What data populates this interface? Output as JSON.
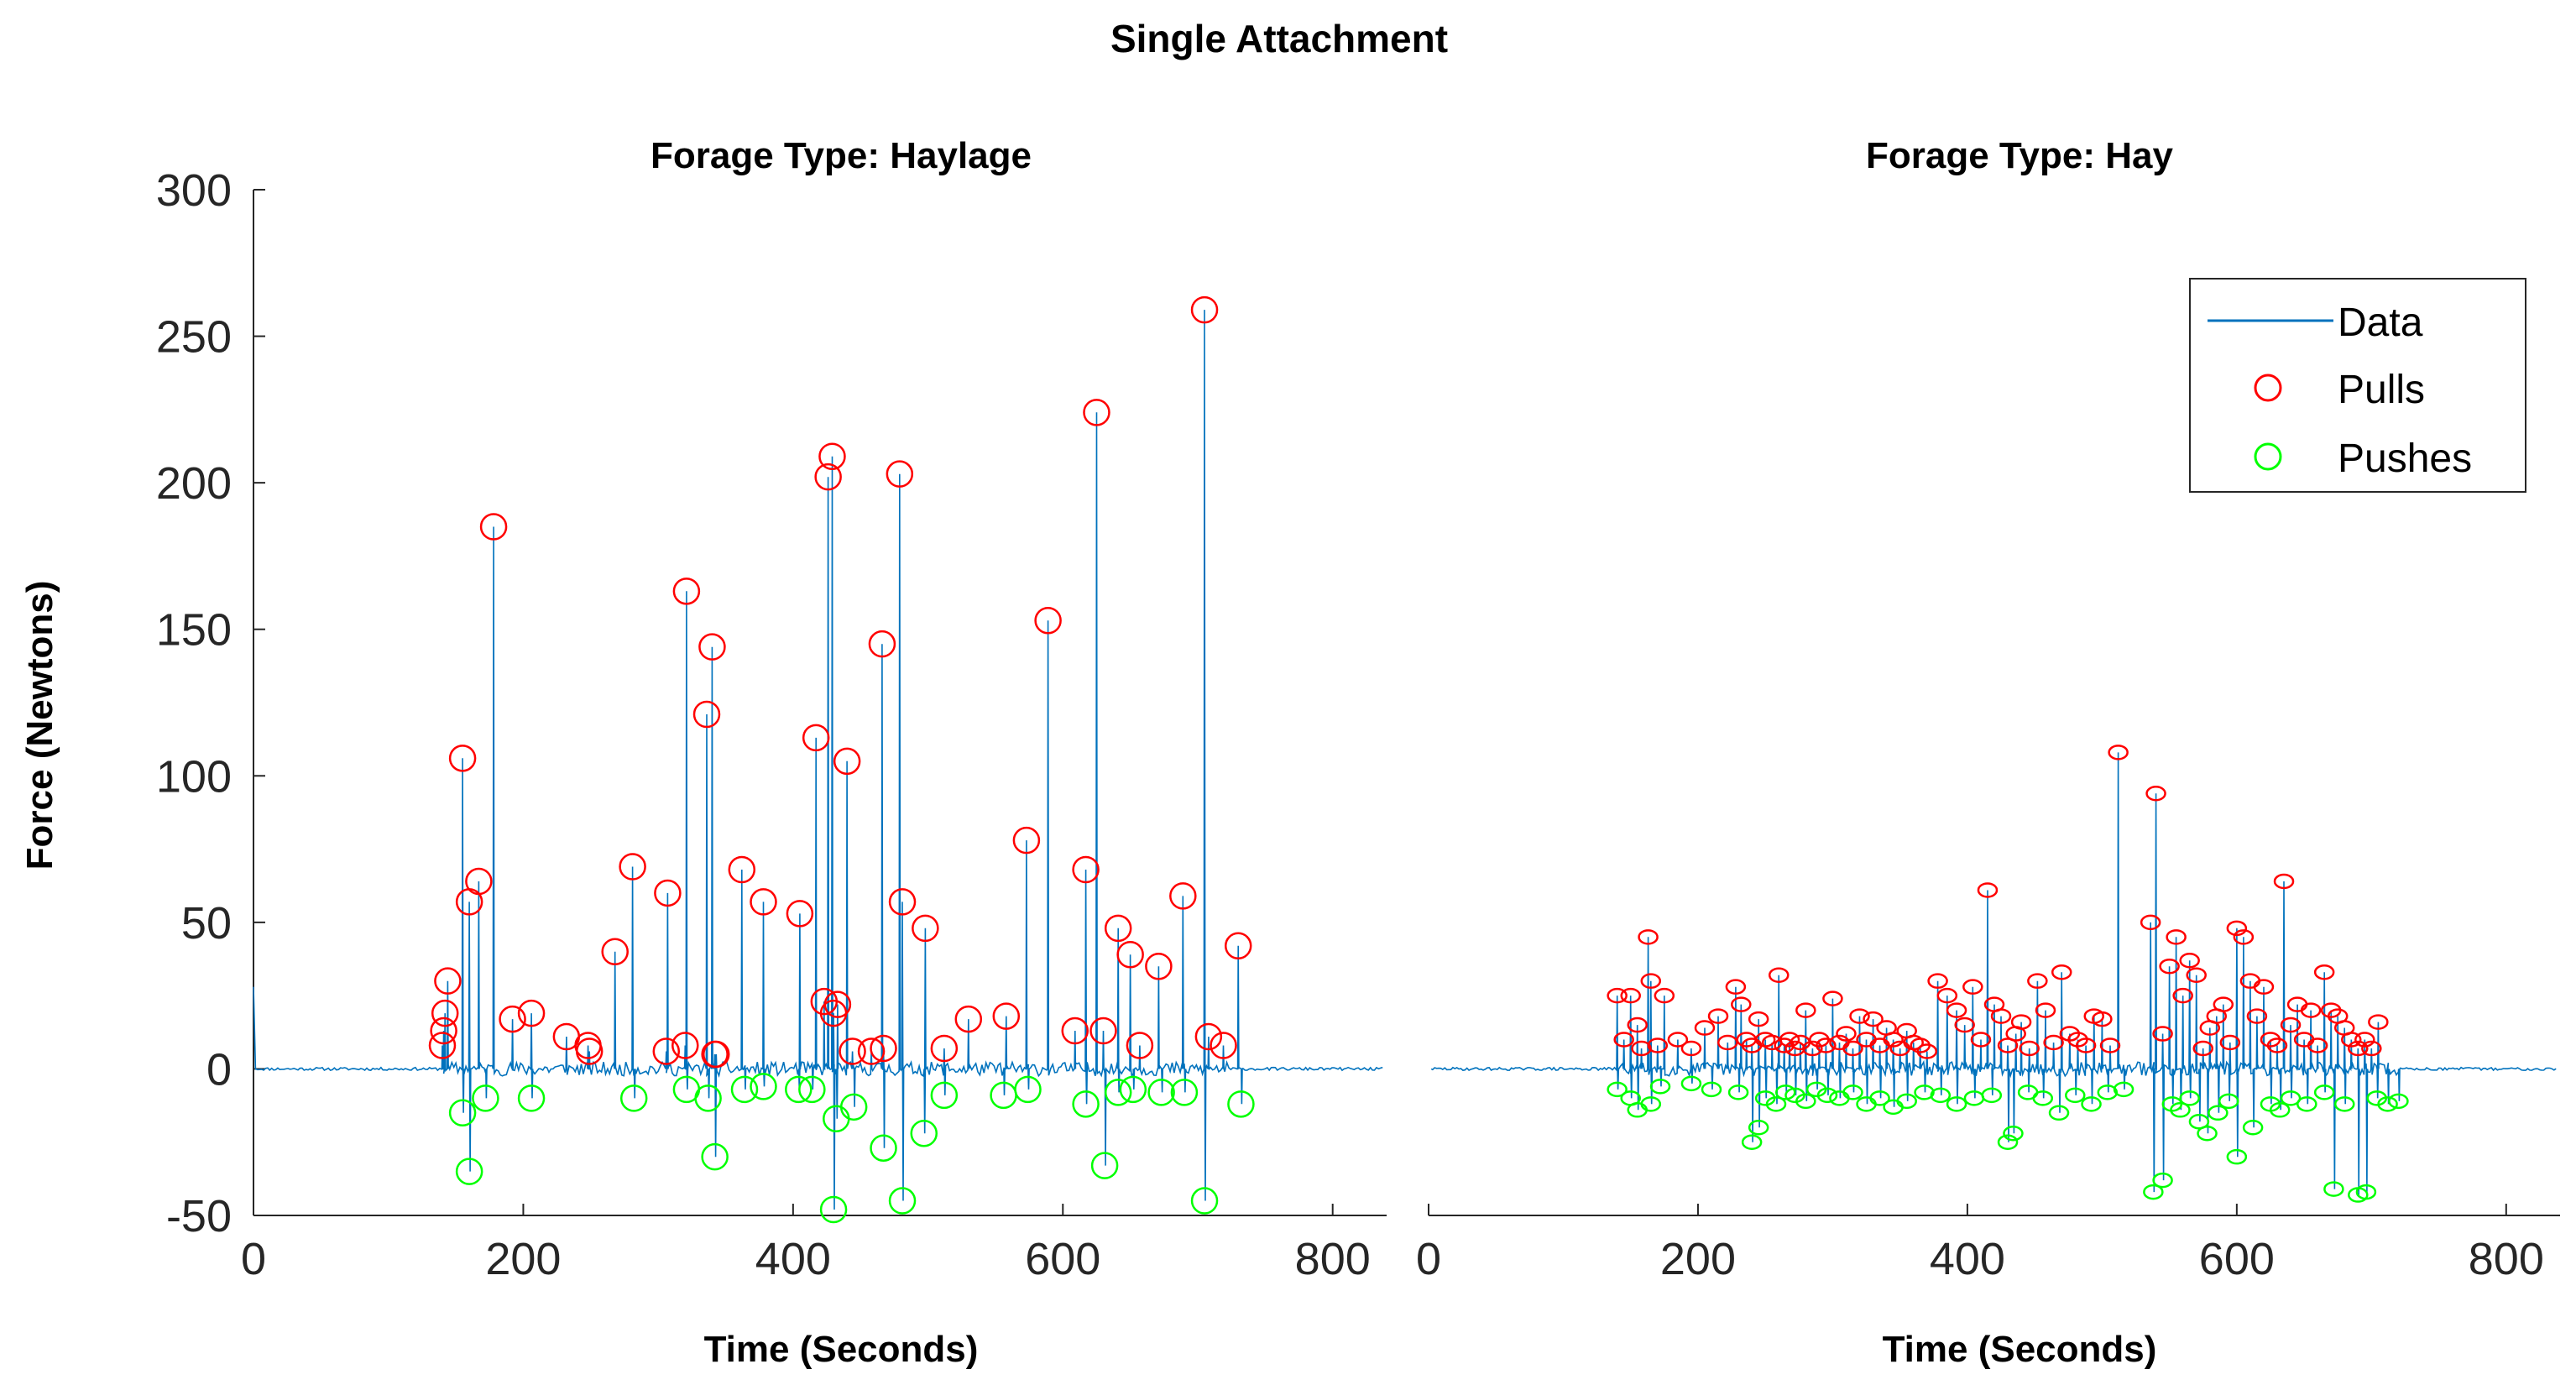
{
  "figure": {
    "title": "Single Attachment",
    "colors": {
      "data": "#0072BD",
      "pulls": "#FF0000",
      "pushes": "#00FF00",
      "axis": "#262626"
    }
  },
  "chart_data": [
    {
      "type": "line",
      "title": "Forage Type: Haylage",
      "xlabel": "Time (Seconds)",
      "ylabel": "Force (Newtons)",
      "xlim": [
        0,
        840
      ],
      "ylim": [
        -50,
        300
      ],
      "xticks": [
        0,
        200,
        400,
        600,
        800
      ],
      "xtick_labels": [
        "0",
        "200",
        "400",
        "600",
        "800"
      ],
      "yticks": [
        -50,
        0,
        50,
        100,
        150,
        200,
        250,
        300
      ],
      "ytick_labels": [
        "-50",
        "0",
        "50",
        "100",
        "150",
        "200",
        "250",
        "300"
      ],
      "series": [
        {
          "name": "Data",
          "style": "line",
          "baseline": 0,
          "start": {
            "x": 0,
            "y": 28
          },
          "active_range": [
            140,
            725
          ]
        },
        {
          "name": "Pulls",
          "style": "marker-circle",
          "x": [
            140,
            141,
            142,
            144,
            155,
            160,
            167,
            178,
            192,
            206,
            232,
            248,
            249,
            268,
            281,
            306,
            307,
            320,
            321,
            336,
            340,
            342,
            343,
            362,
            378,
            405,
            417,
            423,
            426,
            429,
            430,
            433,
            440,
            444,
            458,
            466,
            467,
            479,
            481,
            498,
            512,
            530,
            558,
            573,
            589,
            609,
            617,
            625,
            630,
            641,
            650,
            657,
            671,
            689,
            705,
            708,
            719,
            730
          ],
          "y": [
            8,
            13,
            19,
            30,
            106,
            57,
            64,
            185,
            17,
            19,
            11,
            8,
            6,
            40,
            69,
            6,
            60,
            8,
            163,
            121,
            144,
            5,
            5,
            68,
            57,
            53,
            113,
            23,
            202,
            209,
            19,
            22,
            105,
            6,
            6,
            145,
            7,
            203,
            57,
            48,
            7,
            17,
            18,
            78,
            153,
            13,
            68,
            224,
            13,
            48,
            39,
            8,
            35,
            59,
            259,
            11,
            8,
            42
          ]
        },
        {
          "name": "Pushes",
          "style": "marker-circle",
          "x": [
            155,
            160,
            172,
            206,
            282,
            321,
            337,
            342,
            364,
            378,
            404,
            414,
            430,
            432,
            445,
            467,
            481,
            497,
            512,
            556,
            574,
            617,
            631,
            641,
            652,
            673,
            690,
            705,
            732
          ],
          "y": [
            -15,
            -35,
            -10,
            -10,
            -10,
            -7,
            -10,
            -30,
            -7,
            -6,
            -7,
            -7,
            -48,
            -17,
            -13,
            -27,
            -45,
            -22,
            -9,
            -9,
            -7,
            -12,
            -33,
            -8,
            -7,
            -8,
            -8,
            -45,
            -12
          ]
        }
      ]
    },
    {
      "type": "line",
      "title": "Forage Type: Hay",
      "xlabel": "Time (Seconds)",
      "ylabel": "",
      "xlim": [
        0,
        840
      ],
      "ylim": [
        -50,
        300
      ],
      "xticks": [
        0,
        200,
        400,
        600,
        800
      ],
      "xtick_labels": [
        "0",
        "200",
        "400",
        "600",
        "800"
      ],
      "yticks": [],
      "ytick_labels": [],
      "legend": {
        "position": "top-right",
        "entries": [
          "Data",
          "Pulls",
          "Pushes"
        ]
      },
      "series": [
        {
          "name": "Data",
          "style": "line",
          "baseline": 0,
          "active_range": [
            140,
            720
          ]
        },
        {
          "name": "Pulls",
          "style": "marker-circle",
          "x": [
            140,
            145,
            150,
            155,
            158,
            163,
            165,
            170,
            175,
            185,
            195,
            205,
            215,
            222,
            228,
            232,
            236,
            240,
            245,
            250,
            255,
            260,
            264,
            268,
            272,
            276,
            280,
            285,
            290,
            295,
            300,
            305,
            310,
            315,
            320,
            325,
            330,
            335,
            340,
            345,
            350,
            355,
            360,
            365,
            370,
            378,
            385,
            392,
            398,
            404,
            410,
            415,
            420,
            425,
            430,
            436,
            440,
            446,
            452,
            458,
            464,
            470,
            476,
            482,
            488,
            494,
            500,
            506,
            512,
            536,
            540,
            545,
            550,
            555,
            560,
            565,
            570,
            575,
            580,
            585,
            590,
            595,
            600,
            605,
            610,
            615,
            620,
            625,
            630,
            635,
            640,
            645,
            650,
            655,
            660,
            665,
            670,
            675,
            680,
            685,
            690,
            695,
            700,
            705
          ],
          "y": [
            25,
            10,
            25,
            15,
            7,
            45,
            30,
            8,
            25,
            10,
            7,
            14,
            18,
            9,
            28,
            22,
            10,
            8,
            17,
            10,
            9,
            32,
            8,
            10,
            7,
            9,
            20,
            7,
            10,
            8,
            24,
            9,
            12,
            7,
            18,
            10,
            17,
            8,
            14,
            10,
            7,
            13,
            9,
            8,
            6,
            30,
            25,
            20,
            15,
            28,
            10,
            61,
            22,
            18,
            8,
            12,
            16,
            7,
            30,
            20,
            9,
            33,
            12,
            10,
            8,
            18,
            17,
            8,
            108,
            50,
            94,
            12,
            35,
            45,
            25,
            37,
            32,
            7,
            14,
            18,
            22,
            9,
            48,
            45,
            30,
            18,
            28,
            10,
            8,
            64,
            15,
            22,
            10,
            20,
            8,
            33,
            20,
            18,
            14,
            10,
            7,
            10,
            7,
            16
          ]
        },
        {
          "name": "Pushes",
          "style": "marker-circle",
          "x": [
            140,
            150,
            155,
            165,
            172,
            195,
            210,
            230,
            240,
            245,
            250,
            258,
            265,
            272,
            280,
            288,
            296,
            305,
            315,
            325,
            335,
            345,
            355,
            368,
            380,
            392,
            405,
            418,
            430,
            434,
            445,
            456,
            468,
            480,
            492,
            504,
            516,
            538,
            545,
            552,
            558,
            565,
            572,
            578,
            586,
            594,
            600,
            612,
            625,
            632,
            640,
            652,
            665,
            672,
            680,
            690,
            696,
            704,
            712,
            720
          ],
          "y": [
            -7,
            -10,
            -14,
            -12,
            -6,
            -5,
            -7,
            -8,
            -25,
            -20,
            -10,
            -12,
            -8,
            -9,
            -11,
            -7,
            -9,
            -10,
            -8,
            -12,
            -10,
            -13,
            -11,
            -8,
            -9,
            -12,
            -10,
            -9,
            -25,
            -22,
            -8,
            -10,
            -15,
            -9,
            -12,
            -8,
            -7,
            -42,
            -38,
            -12,
            -14,
            -10,
            -18,
            -22,
            -15,
            -11,
            -30,
            -20,
            -12,
            -14,
            -10,
            -12,
            -8,
            -41,
            -12,
            -43,
            -42,
            -10,
            -12,
            -11
          ]
        }
      ]
    }
  ]
}
